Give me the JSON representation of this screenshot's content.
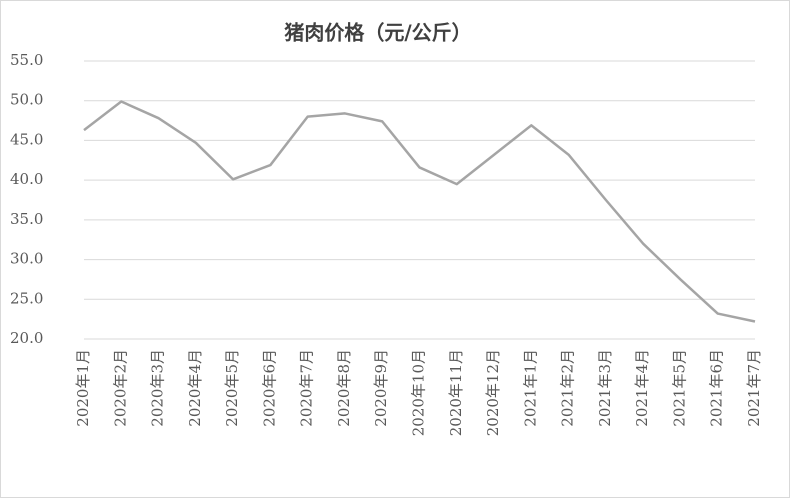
{
  "chart_data": {
    "type": "line",
    "title": "猪肉价格（元/公斤）",
    "categories": [
      "2020年1月",
      "2020年2月",
      "2020年3月",
      "2020年4月",
      "2020年5月",
      "2020年6月",
      "2020年7月",
      "2020年8月",
      "2020年9月",
      "2020年10月",
      "2020年11月",
      "2020年12月",
      "2021年1月",
      "2021年2月",
      "2021年3月",
      "2021年4月",
      "2021年5月",
      "2021年6月",
      "2021年7月"
    ],
    "values": [
      46.3,
      49.9,
      47.8,
      44.7,
      40.1,
      41.9,
      48.0,
      48.4,
      47.4,
      41.6,
      39.5,
      43.2,
      46.9,
      43.2,
      37.5,
      32.0,
      27.5,
      23.2,
      22.2
    ],
    "color": "#a5a5a5",
    "ylim": [
      20,
      55
    ],
    "yticks": [
      {
        "value": 20,
        "label": "20.0"
      },
      {
        "value": 25,
        "label": "25.0"
      },
      {
        "value": 30,
        "label": "30.0"
      },
      {
        "value": 35,
        "label": "35.0"
      },
      {
        "value": 40,
        "label": "40.0"
      },
      {
        "value": 45,
        "label": "45.0"
      },
      {
        "value": 50,
        "label": "50.0"
      },
      {
        "value": 55,
        "label": "55.0"
      }
    ],
    "grid": true
  }
}
